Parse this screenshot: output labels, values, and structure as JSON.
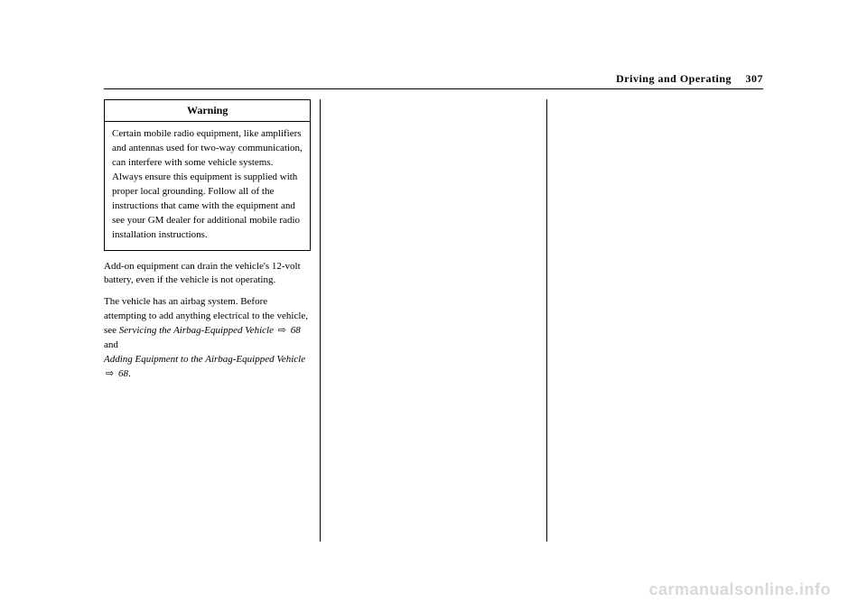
{
  "header": {
    "section": "Driving and Operating",
    "page_number": "307"
  },
  "warning": {
    "title": "Warning",
    "body": "Certain mobile radio equipment, like amplifiers and antennas used for two-way communication, can interfere with some vehicle systems. Always ensure this equipment is supplied with proper local grounding. Follow all of the instructions that came with the equipment and see your GM dealer for additional mobile radio installation instructions."
  },
  "paragraphs": {
    "p1": "Add-on equipment can drain the vehicle's 12-volt battery, even if the vehicle is not operating.",
    "p2_pre": "The vehicle has an airbag system. Before attempting to add anything electrical to the vehicle, see ",
    "xref1_text": "Servicing the Airbag-Equipped Vehicle",
    "xref1_page": "68",
    "and": " and",
    "xref2_text": "Adding Equipment to the Airbag-Equipped Vehicle",
    "xref2_page": "68",
    "period": "."
  },
  "xref_icon": "⇨",
  "watermark": "carmanualsonline.info",
  "colors": {
    "text": "#000000",
    "background": "#ffffff",
    "watermark": "#d9d9d9",
    "border": "#000000"
  }
}
